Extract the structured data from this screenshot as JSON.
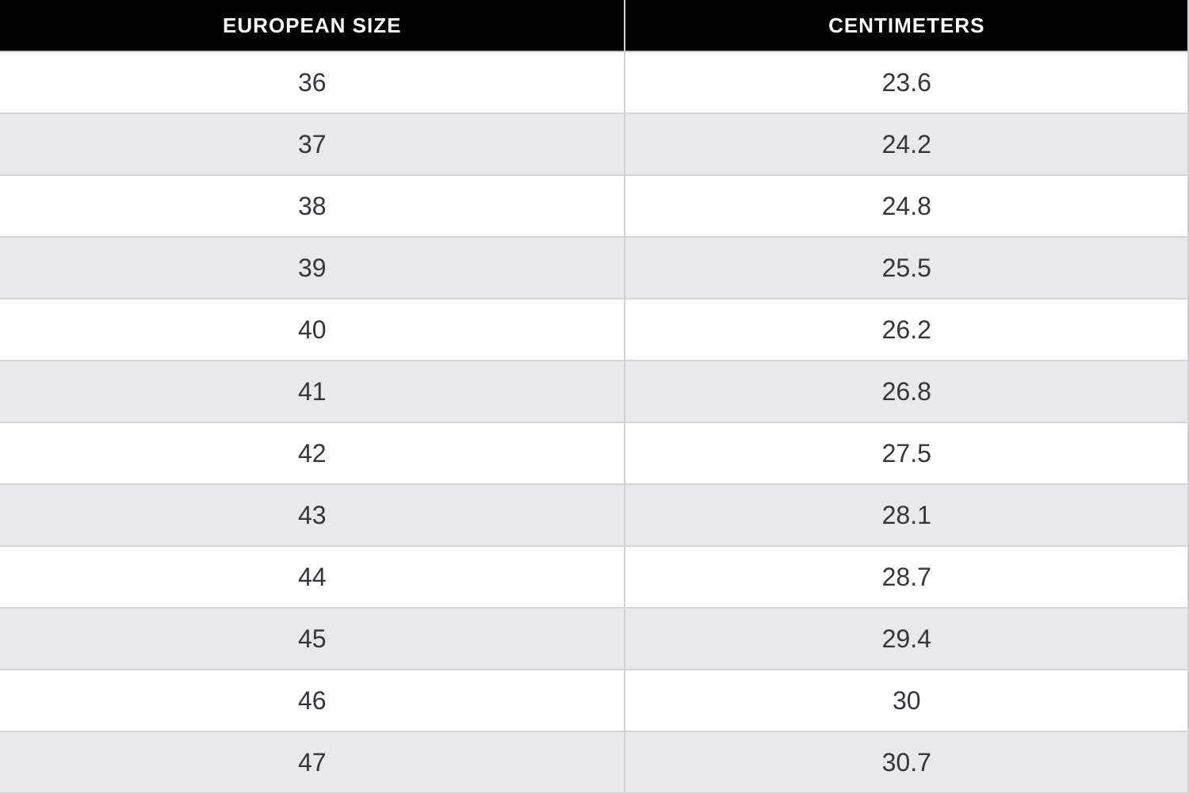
{
  "table": {
    "columns": [
      "EUROPEAN SIZE",
      "CENTIMETERS"
    ],
    "rows": [
      [
        "36",
        "23.6"
      ],
      [
        "37",
        "24.2"
      ],
      [
        "38",
        "24.8"
      ],
      [
        "39",
        "25.5"
      ],
      [
        "40",
        "26.2"
      ],
      [
        "41",
        "26.8"
      ],
      [
        "42",
        "27.5"
      ],
      [
        "43",
        "28.1"
      ],
      [
        "44",
        "28.7"
      ],
      [
        "45",
        "29.4"
      ],
      [
        "46",
        "30"
      ],
      [
        "47",
        "30.7"
      ]
    ]
  },
  "chart_data": {
    "type": "table",
    "columns": [
      "EUROPEAN SIZE",
      "CENTIMETERS"
    ],
    "rows": [
      [
        36,
        23.6
      ],
      [
        37,
        24.2
      ],
      [
        38,
        24.8
      ],
      [
        39,
        25.5
      ],
      [
        40,
        26.2
      ],
      [
        41,
        26.8
      ],
      [
        42,
        27.5
      ],
      [
        43,
        28.1
      ],
      [
        44,
        28.7
      ],
      [
        45,
        29.4
      ],
      [
        46,
        30
      ],
      [
        47,
        30.7
      ]
    ]
  },
  "colors": {
    "header_bg": "#000000",
    "header_text": "#ffffff",
    "row_alt_bg": "#e9e9eb",
    "row_bg": "#ffffff",
    "border": "#d6d6da",
    "body_text": "#35363c"
  }
}
